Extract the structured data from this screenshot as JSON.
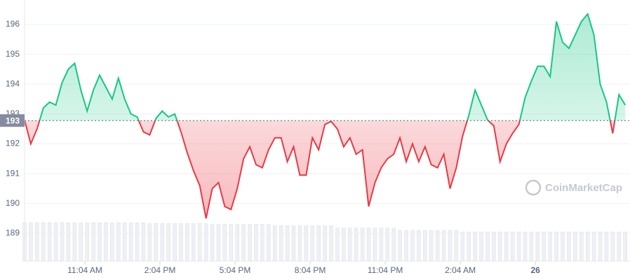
{
  "chart_data": {
    "type": "line",
    "watermark": "CoinMarketCap",
    "baseline": {
      "value": 192.78,
      "label": "193"
    },
    "xlim": [
      8.66,
      32.85
    ],
    "ylim": [
      188.07,
      196.82
    ],
    "xticks": [
      {
        "value": 11.07,
        "label": "11:04 AM"
      },
      {
        "value": 14.07,
        "label": "2:04 PM"
      },
      {
        "value": 17.07,
        "label": "5:04 PM"
      },
      {
        "value": 20.07,
        "label": "8:04 PM"
      },
      {
        "value": 23.07,
        "label": "11:04 PM"
      },
      {
        "value": 26.07,
        "label": "2:04 AM"
      },
      {
        "value": 29.07,
        "label": "26"
      }
    ],
    "yticks": [
      189,
      190,
      191,
      192,
      193,
      194,
      195,
      196
    ],
    "grid": true,
    "up_color": "#16c784",
    "down_color": "#ea3943",
    "x": [
      8.66,
      8.91,
      9.16,
      9.41,
      9.66,
      9.91,
      10.16,
      10.41,
      10.66,
      10.91,
      11.16,
      11.41,
      11.66,
      11.91,
      12.16,
      12.41,
      12.66,
      12.91,
      13.16,
      13.41,
      13.66,
      13.91,
      14.16,
      14.41,
      14.66,
      14.91,
      15.16,
      15.41,
      15.66,
      15.91,
      16.16,
      16.41,
      16.66,
      16.91,
      17.16,
      17.41,
      17.66,
      17.91,
      18.16,
      18.41,
      18.66,
      18.91,
      19.16,
      19.41,
      19.66,
      19.91,
      20.16,
      20.41,
      20.66,
      20.91,
      21.16,
      21.41,
      21.66,
      21.91,
      22.16,
      22.41,
      22.66,
      22.91,
      23.16,
      23.41,
      23.66,
      23.91,
      24.16,
      24.41,
      24.66,
      24.91,
      25.16,
      25.41,
      25.66,
      25.91,
      26.16,
      26.41,
      26.66,
      26.91,
      27.16,
      27.41,
      27.66,
      27.91,
      28.16,
      28.41,
      28.66,
      28.91,
      29.16,
      29.41,
      29.66,
      29.91,
      30.16,
      30.41,
      30.66,
      30.91,
      31.16,
      31.41,
      31.66,
      31.91,
      32.16,
      32.41,
      32.66
    ],
    "values": [
      192.8,
      192.0,
      192.5,
      193.2,
      193.4,
      193.3,
      194.05,
      194.5,
      194.7,
      193.8,
      193.1,
      193.8,
      194.3,
      193.9,
      193.5,
      194.2,
      193.5,
      193.0,
      192.9,
      192.4,
      192.3,
      192.85,
      193.1,
      192.9,
      193.0,
      192.4,
      191.7,
      191.1,
      190.6,
      189.5,
      190.5,
      190.7,
      189.9,
      189.8,
      190.5,
      191.5,
      191.9,
      191.3,
      191.2,
      191.8,
      192.2,
      192.2,
      191.4,
      191.9,
      190.95,
      190.95,
      192.2,
      191.8,
      192.65,
      192.75,
      192.5,
      191.9,
      192.2,
      191.65,
      191.8,
      189.9,
      190.7,
      191.2,
      191.5,
      191.65,
      192.2,
      191.4,
      192.0,
      191.4,
      191.9,
      191.3,
      191.2,
      191.65,
      190.5,
      191.2,
      192.25,
      192.95,
      193.8,
      193.3,
      192.8,
      192.6,
      191.4,
      192.0,
      192.35,
      192.65,
      193.55,
      194.1,
      194.6,
      194.6,
      194.25,
      196.1,
      195.4,
      195.2,
      195.65,
      196.1,
      196.35,
      195.65,
      194.0,
      193.4,
      192.35,
      193.65,
      193.3
    ],
    "volume": [
      100,
      100,
      100,
      100,
      100,
      100,
      100,
      100,
      100,
      100,
      100,
      100,
      100,
      100,
      100,
      100,
      100,
      100,
      100,
      100,
      98,
      98,
      98,
      98,
      98,
      98,
      98,
      98,
      98,
      98,
      96,
      96,
      96,
      96,
      96,
      96,
      96,
      96,
      96,
      96,
      92,
      92,
      92,
      92,
      92,
      92,
      92,
      92,
      92,
      92,
      86,
      86,
      86,
      86,
      86,
      86,
      86,
      86,
      86,
      86,
      80,
      80,
      80,
      80,
      80,
      80,
      80,
      80,
      80,
      80,
      76,
      76,
      76,
      76,
      76,
      76,
      76,
      76,
      76,
      76,
      76,
      76,
      76,
      76,
      76,
      76,
      76,
      76,
      76,
      76,
      76,
      76,
      76,
      76,
      76,
      76,
      76
    ]
  }
}
